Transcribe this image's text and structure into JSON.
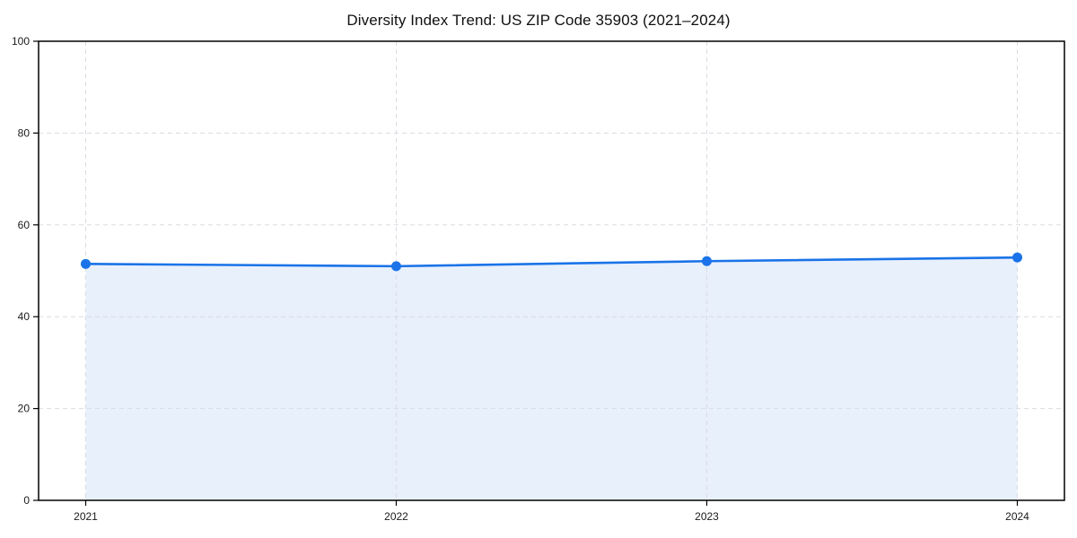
{
  "page": {
    "background_color": "#ffffff"
  },
  "chart_data": {
    "type": "area",
    "title": "Diversity Index Trend: US ZIP Code 35903 (2021–2024)",
    "categories": [
      "2021",
      "2022",
      "2023",
      "2024"
    ],
    "series": [
      {
        "name": "Diversity Index",
        "values": [
          51.5,
          51.0,
          52.1,
          52.9
        ]
      }
    ],
    "xlabel": "",
    "ylabel": "",
    "ylim": [
      0,
      100
    ],
    "yticks": [
      0,
      20,
      40,
      60,
      80,
      100
    ],
    "grid": true,
    "grid_style": "dashed",
    "legend": false,
    "marker": "circle",
    "colors": {
      "line": "#1a73e8",
      "marker": "#1a73e8",
      "fill": "#e8f0fc",
      "grid": "#d9dce2",
      "spine": "#000000",
      "tick_label": "#1a1a1a",
      "title": "#111111"
    }
  }
}
